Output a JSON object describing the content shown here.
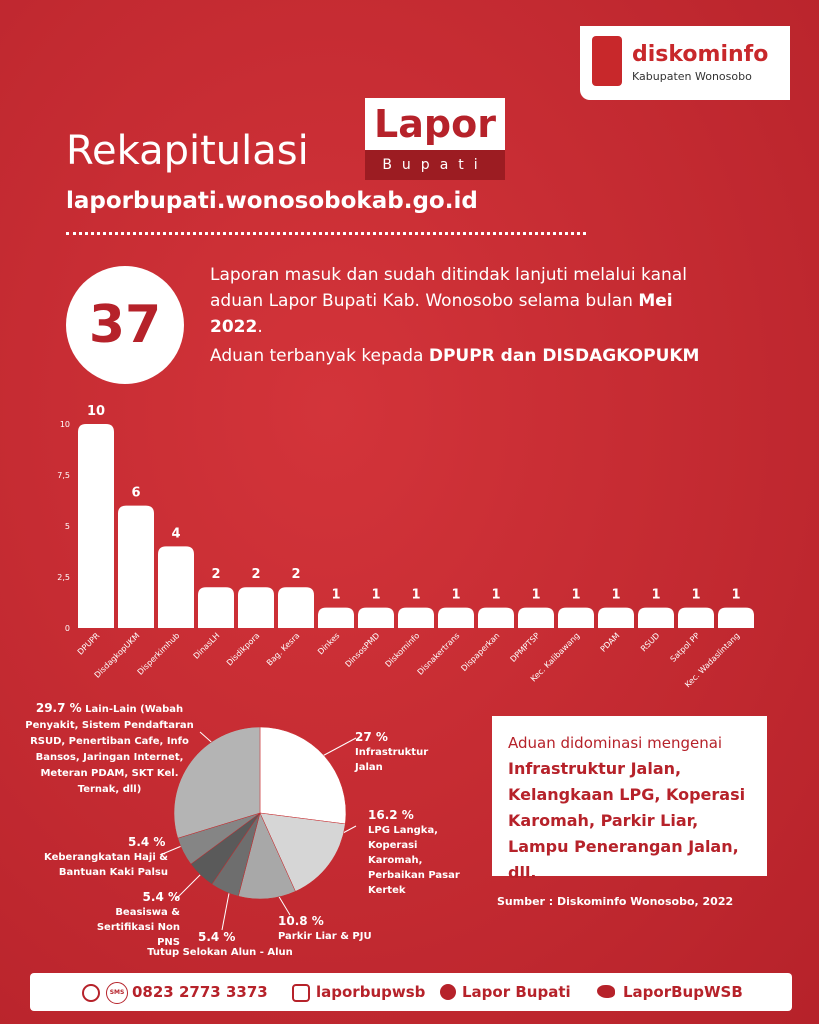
{
  "logo": {
    "name": "diskominfo",
    "subtitle": "Kabupaten Wonosobo"
  },
  "header": {
    "title": "Rekapitulasi",
    "badge": "Lapor",
    "badge_sub": "Bupati",
    "url": "laporbupati.wonosobokab.go.id"
  },
  "summary": {
    "count": 37,
    "line1": "Laporan masuk dan sudah ditindak lanjuti melalui kanal aduan Lapor Bupati Kab. Wonosobo selama bulan ",
    "line1_bold": "Mei 2022",
    "line1_end": ".",
    "line2": "Aduan terbanyak kepada ",
    "line2_bold": "DPUPR dan DISDAGKOPUKM"
  },
  "chart_data": [
    {
      "type": "bar",
      "categories": [
        "DPUPR",
        "DisdagkopUKM",
        "Disperkimhub",
        "DinasLH",
        "Disdikpora",
        "Bag. Kesra",
        "Dinkes",
        "DinsosPMD",
        "Diskominfo",
        "Disnakertrans",
        "Dispaperkan",
        "DPMPTSP",
        "Kec. Kalibawang",
        "PDAM",
        "RSUD",
        "Satpol PP",
        "Kec. Wadaslintang"
      ],
      "values": [
        10,
        6,
        4,
        2,
        2,
        2,
        1,
        1,
        1,
        1,
        1,
        1,
        1,
        1,
        1,
        1,
        1
      ],
      "color": "#ffffff",
      "ylim": [
        0,
        10
      ],
      "yticks": [
        0,
        {
          "value": 2.5,
          "label": "2,5"
        },
        5,
        {
          "value": 7.5,
          "label": "7,5"
        },
        10
      ],
      "grid": false
    },
    {
      "type": "pie",
      "values": [
        27,
        16.2,
        10.8,
        5.4,
        5.4,
        5.4,
        29.7
      ],
      "value_labels": [
        "27 %",
        "16.2 %",
        "10.8 %",
        "5.4 %",
        "5.4 %",
        "5.4 %",
        "29.7 %"
      ],
      "labels": [
        "Infrastruktur Jalan",
        "LPG Langka, Koperasi Karomah, Perbaikan Pasar Kertek",
        "Parkir Liar & PJU",
        "Tutup Selokan Alun - Alun",
        "Beasiswa & Sertifikasi Non PNS",
        "Keberangkatan Haji & Bantuan Kaki Palsu",
        "Lain-Lain (Wabah Penyakit, Sistem Pendaftaran RSUD, Penertiban Cafe, Info Bansos, Jaringan Internet, Meteran PDAM, SKT Kel. Ternak, dll)"
      ],
      "colors": [
        "#ffffff",
        "#d6d6d6",
        "#a8a8a8",
        "#6e6e6e",
        "#5a5a5a",
        "#858585",
        "#b4b4b4"
      ]
    }
  ],
  "note": {
    "intro": "Aduan didominasi mengenai",
    "highlight": "Infrastruktur Jalan, Kelangkaan LPG, Koperasi Karomah, Parkir Liar, Lampu Penerangan Jalan,  dll."
  },
  "source": "Sumber : Diskominfo Wonosobo, 2022",
  "footer": {
    "sms": "SMS",
    "phone": "0823 2773 3373",
    "instagram": "laporbupwsb",
    "facebook": "Lapor Bupati",
    "twitter": "LaporBupWSB"
  }
}
